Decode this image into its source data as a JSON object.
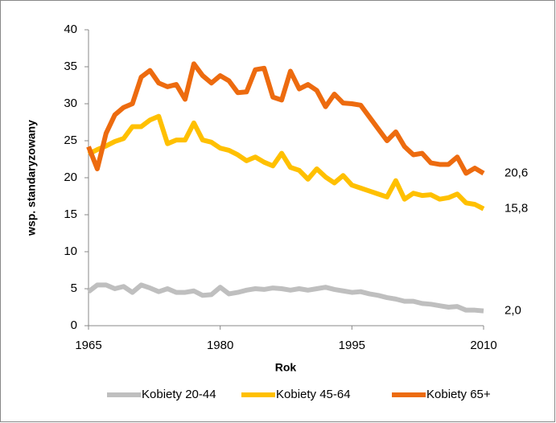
{
  "chart_data": {
    "type": "line",
    "x_label": "Rok",
    "y_label": "wsp. standaryzowany",
    "x": [
      1965,
      1966,
      1967,
      1968,
      1969,
      1970,
      1971,
      1972,
      1973,
      1974,
      1975,
      1976,
      1977,
      1978,
      1979,
      1980,
      1981,
      1982,
      1983,
      1984,
      1985,
      1986,
      1987,
      1988,
      1989,
      1990,
      1991,
      1992,
      1993,
      1994,
      1995,
      1996,
      1997,
      1998,
      1999,
      2000,
      2001,
      2002,
      2003,
      2004,
      2005,
      2006,
      2007,
      2008,
      2009,
      2010
    ],
    "xlim": [
      1965,
      2010
    ],
    "xticks": [
      1965,
      1980,
      1995,
      2010
    ],
    "ylim": [
      0,
      40
    ],
    "yticks": [
      0,
      5,
      10,
      15,
      20,
      25,
      30,
      35,
      40
    ],
    "grid": false,
    "legend": "bottom",
    "series": [
      {
        "name": "Kobiety 20-44",
        "color": "#bfbfbf",
        "values": [
          4.6,
          5.5,
          5.5,
          5,
          5.3,
          4.5,
          5.5,
          5.1,
          4.6,
          5,
          4.5,
          4.5,
          4.7,
          4.1,
          4.2,
          5.2,
          4.3,
          4.5,
          4.8,
          5,
          4.9,
          5.1,
          5,
          4.8,
          5,
          4.8,
          5,
          5.2,
          4.9,
          4.7,
          4.5,
          4.6,
          4.3,
          4.1,
          3.8,
          3.6,
          3.3,
          3.3,
          3.0,
          2.9,
          2.7,
          2.5,
          2.6,
          2.1,
          2.1,
          2.0
        ],
        "value_labels": [
          null,
          null,
          null,
          null,
          null,
          null,
          null,
          null,
          null,
          null,
          null,
          null,
          null,
          null,
          null,
          null,
          null,
          null,
          null,
          null,
          null,
          null,
          null,
          null,
          null,
          null,
          null,
          null,
          null,
          null,
          null,
          null,
          null,
          null,
          null,
          null,
          null,
          null,
          null,
          null,
          null,
          null,
          null,
          null,
          null,
          "2,0"
        ]
      },
      {
        "name": "Kobiety 45-64",
        "color": "#ffc000",
        "values": [
          23.2,
          23.8,
          24.3,
          24.9,
          25.3,
          26.9,
          26.9,
          27.8,
          28.3,
          24.6,
          25.1,
          25.1,
          27.4,
          25.1,
          24.8,
          24,
          23.7,
          23.1,
          22.3,
          22.8,
          22.1,
          21.6,
          23.3,
          21.4,
          21,
          19.8,
          21.2,
          20.1,
          19.3,
          20.3,
          19,
          18.6,
          18.2,
          17.8,
          17.4,
          19.6,
          17.1,
          17.9,
          17.6,
          17.7,
          17.1,
          17.3,
          17.8,
          16.6,
          16.4,
          15.8
        ],
        "value_labels": [
          null,
          null,
          null,
          null,
          null,
          null,
          null,
          null,
          null,
          null,
          null,
          null,
          null,
          null,
          null,
          null,
          null,
          null,
          null,
          null,
          null,
          null,
          null,
          null,
          null,
          null,
          null,
          null,
          null,
          null,
          null,
          null,
          null,
          null,
          null,
          null,
          null,
          null,
          null,
          null,
          null,
          null,
          null,
          null,
          null,
          "15,8"
        ]
      },
      {
        "name": "Kobiety 65+",
        "color": "#ed6b0f",
        "values": [
          24.2,
          21.2,
          26,
          28.5,
          29.5,
          30,
          33.6,
          34.5,
          32.8,
          32.3,
          32.6,
          30.6,
          35.4,
          33.8,
          32.8,
          33.8,
          33.1,
          31.5,
          31.6,
          34.6,
          34.8,
          30.9,
          30.5,
          34.4,
          32,
          32.6,
          31.8,
          29.6,
          31.3,
          30.1,
          30,
          29.8,
          28.2,
          26.6,
          25,
          26.2,
          24.2,
          23.1,
          23.3,
          22,
          21.8,
          21.8,
          22.8,
          20.6,
          21.3,
          20.6
        ],
        "value_labels": [
          null,
          null,
          null,
          null,
          null,
          null,
          null,
          null,
          null,
          null,
          null,
          null,
          null,
          null,
          null,
          null,
          null,
          null,
          null,
          null,
          null,
          null,
          null,
          null,
          null,
          null,
          null,
          null,
          null,
          null,
          null,
          null,
          null,
          null,
          null,
          null,
          null,
          null,
          null,
          null,
          null,
          null,
          null,
          null,
          null,
          "20,6"
        ]
      }
    ]
  }
}
